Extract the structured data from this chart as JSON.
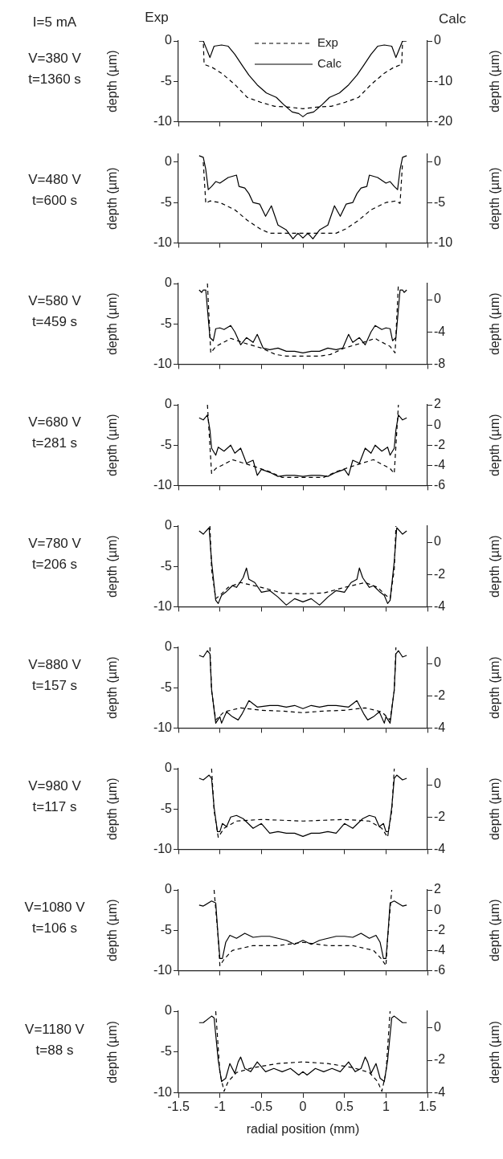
{
  "chart_data": [
    {
      "type": "line",
      "annotations": [
        "I=5 mA",
        "Exp",
        "Calc",
        "V=380 V",
        "t=1360 s"
      ],
      "ylabel": "depth (µm)",
      "y2label": "depth (µm)",
      "xlim": [
        -1.5,
        1.5
      ],
      "xticks": [
        -1.5,
        -1,
        -0.5,
        0,
        0.5,
        1,
        1.5
      ],
      "ylim": [
        -10,
        0
      ],
      "yticks": [
        -10,
        -5,
        0
      ],
      "y2lim": [
        -20,
        0
      ],
      "y2ticks": [
        -20,
        -10,
        0
      ],
      "tick_labels": "y",
      "grid": false,
      "legend": "top",
      "marker": "none",
      "series": [
        {
          "name": "Exp",
          "color": "#000000",
          "line_style": "dashed",
          "axis": "y",
          "x": [
            -1.25,
            -1.2,
            -1.19,
            -1.09,
            -0.98,
            -0.82,
            -0.67,
            -0.51,
            -0.34,
            -0.17,
            0,
            0.17,
            0.34,
            0.51,
            0.67,
            0.82,
            0.98,
            1.09,
            1.19,
            1.2,
            1.25
          ],
          "values": [
            0,
            0,
            -2.9,
            -3.3,
            -4.0,
            -5.4,
            -7.0,
            -7.6,
            -8.1,
            -8.2,
            -8.4,
            -8.2,
            -8.1,
            -7.6,
            -7.0,
            -5.4,
            -4.0,
            -3.3,
            -2.9,
            0,
            0
          ]
        },
        {
          "name": "Calc",
          "color": "#000000",
          "line_style": "solid",
          "axis": "y2",
          "x": [
            -1.25,
            -1.2,
            -1.12,
            -1.07,
            -0.98,
            -0.9,
            -0.82,
            -0.73,
            -0.65,
            -0.55,
            -0.44,
            -0.32,
            -0.22,
            -0.13,
            -0.05,
            0,
            0.05,
            0.13,
            0.22,
            0.32,
            0.44,
            0.55,
            0.65,
            0.73,
            0.82,
            0.9,
            0.98,
            1.07,
            1.12,
            1.2,
            1.25
          ],
          "values": [
            0,
            0,
            -4.1,
            -1.3,
            -1.0,
            -1.3,
            -3.3,
            -6.1,
            -8.5,
            -10.9,
            -12.9,
            -14.0,
            -16.0,
            -17.6,
            -18.0,
            -18.8,
            -18.0,
            -17.6,
            -16.0,
            -14.0,
            -12.9,
            -10.9,
            -8.5,
            -6.1,
            -3.3,
            -1.3,
            -1.0,
            -1.3,
            -4.1,
            0,
            0
          ]
        }
      ]
    },
    {
      "type": "line",
      "annotations": [
        "V=480 V",
        "t=600 s"
      ],
      "ylabel": "depth (µm)",
      "y2label": "depth (µm)",
      "xlim": [
        -1.5,
        1.5
      ],
      "xticks": [
        -1.5,
        -1,
        -0.5,
        0,
        0.5,
        1,
        1.5
      ],
      "ylim": [
        -10,
        1
      ],
      "yticks": [
        -10,
        -5,
        0
      ],
      "y2lim": [
        -10,
        1
      ],
      "y2ticks": [
        -10,
        -5,
        0
      ],
      "tick_labels": "y",
      "grid": false,
      "marker": "none",
      "series": [
        {
          "color": "#000000",
          "line_style": "dashed",
          "axis": "y",
          "x": [
            -1.2,
            -1.17,
            -1.12,
            -1.0,
            -0.82,
            -0.67,
            -0.51,
            -0.4,
            -0.2,
            0,
            0.2,
            0.4,
            0.51,
            0.67,
            0.82,
            1.0,
            1.12,
            1.17,
            1.2
          ],
          "values": [
            0,
            -5.1,
            -4.8,
            -5.0,
            -5.9,
            -7.2,
            -8.3,
            -8.8,
            -8.8,
            -8.8,
            -8.8,
            -8.8,
            -8.3,
            -7.2,
            -5.9,
            -5.0,
            -4.8,
            -5.1,
            0
          ]
        },
        {
          "color": "#000000",
          "line_style": "solid",
          "axis": "y2",
          "x": [
            -1.25,
            -1.2,
            -1.17,
            -1.14,
            -1.1,
            -1.05,
            -1.0,
            -0.9,
            -0.8,
            -0.77,
            -0.7,
            -0.65,
            -0.6,
            -0.52,
            -0.45,
            -0.38,
            -0.3,
            -0.2,
            -0.12,
            -0.06,
            0,
            0.06,
            0.12,
            0.2,
            0.3,
            0.38,
            0.45,
            0.52,
            0.6,
            0.65,
            0.7,
            0.77,
            0.8,
            0.9,
            1.0,
            1.05,
            1.1,
            1.14,
            1.17,
            1.2,
            1.25
          ],
          "values": [
            0.8,
            0.6,
            -0.9,
            -3.4,
            -3.0,
            -2.4,
            -2.6,
            -1.9,
            -1.6,
            -3.0,
            -3.2,
            -3.9,
            -5.0,
            -5.2,
            -6.7,
            -5.4,
            -7.8,
            -8.4,
            -9.5,
            -8.8,
            -9.4,
            -8.8,
            -9.5,
            -8.4,
            -7.8,
            -5.4,
            -6.7,
            -5.2,
            -5.0,
            -3.9,
            -3.2,
            -3.0,
            -1.6,
            -1.9,
            -2.6,
            -2.4,
            -3.0,
            -3.4,
            -0.9,
            0.6,
            0.8
          ]
        }
      ]
    },
    {
      "type": "line",
      "annotations": [
        "V=580 V",
        "t=459 s"
      ],
      "ylabel": "depth (µm)",
      "y2label": "depth (µm)",
      "xlim": [
        -1.5,
        1.5
      ],
      "xticks": [
        -1.5,
        -1,
        -0.5,
        0,
        0.5,
        1,
        1.5
      ],
      "ylim": [
        -10,
        0
      ],
      "yticks": [
        -10,
        -5,
        0
      ],
      "y2lim": [
        -8,
        2
      ],
      "y2ticks": [
        -8,
        -4,
        0
      ],
      "tick_labels": "y",
      "grid": false,
      "marker": "none",
      "series": [
        {
          "color": "#000000",
          "line_style": "dashed",
          "axis": "y",
          "x": [
            -1.15,
            -1.11,
            -1.05,
            -0.9,
            -0.87,
            -0.7,
            -0.5,
            -0.33,
            -0.2,
            0,
            0.2,
            0.33,
            0.5,
            0.7,
            0.87,
            0.9,
            1.05,
            1.11,
            1.15
          ],
          "values": [
            0,
            -8.6,
            -7.8,
            -7.0,
            -6.8,
            -7.4,
            -8.0,
            -8.8,
            -9.0,
            -9.0,
            -9.0,
            -8.8,
            -8.0,
            -7.4,
            -6.8,
            -7.0,
            -7.8,
            -8.6,
            0
          ]
        },
        {
          "color": "#000000",
          "line_style": "solid",
          "axis": "y2",
          "x": [
            -1.25,
            -1.22,
            -1.2,
            -1.17,
            -1.12,
            -1.08,
            -1.05,
            -1.0,
            -0.95,
            -0.87,
            -0.82,
            -0.75,
            -0.68,
            -0.6,
            -0.55,
            -0.48,
            -0.4,
            -0.3,
            -0.2,
            -0.1,
            0,
            0.1,
            0.2,
            0.3,
            0.4,
            0.48,
            0.55,
            0.6,
            0.68,
            0.75,
            0.82,
            0.87,
            0.95,
            1.0,
            1.05,
            1.08,
            1.12,
            1.17,
            1.2,
            1.22,
            1.25
          ],
          "values": [
            1.2,
            0.9,
            1.2,
            1.2,
            -4.7,
            -5.1,
            -3.6,
            -3.5,
            -3.7,
            -3.2,
            -4.0,
            -5.6,
            -4.7,
            -5.3,
            -4.3,
            -6.0,
            -6.2,
            -6.0,
            -6.4,
            -6.4,
            -6.6,
            -6.4,
            -6.4,
            -6.0,
            -6.2,
            -6.0,
            -4.3,
            -5.3,
            -4.7,
            -5.6,
            -4.0,
            -3.2,
            -3.7,
            -3.5,
            -3.6,
            -5.1,
            -4.7,
            1.2,
            1.2,
            0.9,
            1.2
          ]
        }
      ]
    },
    {
      "type": "line",
      "annotations": [
        "V=680 V",
        "t=281 s"
      ],
      "ylabel": "depth (µm)",
      "y2label": "depth (µm)",
      "xlim": [
        -1.5,
        1.5
      ],
      "xticks": [
        -1.5,
        -1,
        -0.5,
        0,
        0.5,
        1,
        1.5
      ],
      "ylim": [
        -10,
        0
      ],
      "yticks": [
        -10,
        -5,
        0
      ],
      "y2lim": [
        -6,
        2
      ],
      "y2ticks": [
        -6,
        -4,
        -2,
        0,
        2
      ],
      "tick_labels": "y",
      "grid": false,
      "marker": "none",
      "series": [
        {
          "color": "#000000",
          "line_style": "dashed",
          "axis": "y",
          "x": [
            -1.15,
            -1.1,
            -1.05,
            -0.9,
            -0.85,
            -0.6,
            -0.4,
            -0.25,
            0,
            0.25,
            0.4,
            0.6,
            0.85,
            0.9,
            1.05,
            1.1,
            1.15
          ],
          "values": [
            0,
            -8.5,
            -7.9,
            -7.1,
            -6.8,
            -7.6,
            -8.3,
            -9.0,
            -9.0,
            -9.0,
            -8.3,
            -7.6,
            -6.8,
            -7.1,
            -7.9,
            -8.5,
            0
          ]
        },
        {
          "color": "#000000",
          "line_style": "solid",
          "axis": "y2",
          "x": [
            -1.25,
            -1.2,
            -1.15,
            -1.12,
            -1.1,
            -1.05,
            -1.02,
            -0.95,
            -0.87,
            -0.82,
            -0.75,
            -0.68,
            -0.6,
            -0.55,
            -0.5,
            -0.4,
            -0.3,
            -0.2,
            -0.1,
            0,
            0.1,
            0.2,
            0.3,
            0.4,
            0.5,
            0.55,
            0.6,
            0.68,
            0.75,
            0.82,
            0.87,
            0.95,
            1.02,
            1.05,
            1.1,
            1.12,
            1.15,
            1.2,
            1.25
          ],
          "values": [
            0.7,
            0.5,
            1.0,
            -0.5,
            -2.3,
            -3.0,
            -2.2,
            -2.6,
            -2.0,
            -2.8,
            -2.3,
            -3.8,
            -3.5,
            -5.0,
            -4.4,
            -4.7,
            -5.1,
            -5.0,
            -5.0,
            -5.1,
            -5.0,
            -5.0,
            -5.1,
            -4.7,
            -4.4,
            -5.0,
            -3.5,
            -3.8,
            -2.3,
            -2.8,
            -2.0,
            -2.6,
            -2.2,
            -3.0,
            -2.3,
            -0.5,
            1.0,
            0.5,
            0.7
          ]
        }
      ]
    },
    {
      "type": "line",
      "annotations": [
        "V=780 V",
        "t=206 s"
      ],
      "ylabel": "depth (µm)",
      "y2label": "depth (µm)",
      "xlim": [
        -1.5,
        1.5
      ],
      "xticks": [
        -1.5,
        -1,
        -0.5,
        0,
        0.5,
        1,
        1.5
      ],
      "ylim": [
        -10,
        0
      ],
      "yticks": [
        -10,
        -5,
        0
      ],
      "y2lim": [
        -4,
        1
      ],
      "y2ticks": [
        -4,
        -2,
        0
      ],
      "tick_labels": "y",
      "grid": false,
      "marker": "none",
      "series": [
        {
          "color": "#000000",
          "line_style": "dashed",
          "axis": "y",
          "x": [
            -1.12,
            -1.1,
            -1.05,
            -1.0,
            -0.9,
            -0.75,
            -0.5,
            -0.25,
            0,
            0.25,
            0.5,
            0.75,
            0.9,
            1.0,
            1.05,
            1.1,
            1.12
          ],
          "values": [
            0,
            -5.4,
            -9.0,
            -8.6,
            -7.6,
            -7.0,
            -7.6,
            -8.3,
            -8.4,
            -8.3,
            -7.6,
            -7.0,
            -7.6,
            -8.6,
            -9.0,
            -5.4,
            0
          ]
        },
        {
          "color": "#000000",
          "line_style": "solid",
          "axis": "y2",
          "x": [
            -1.25,
            -1.2,
            -1.13,
            -1.1,
            -1.05,
            -1.02,
            -0.98,
            -0.93,
            -0.85,
            -0.8,
            -0.72,
            -0.68,
            -0.65,
            -0.58,
            -0.5,
            -0.4,
            -0.3,
            -0.2,
            -0.1,
            0,
            0.1,
            0.2,
            0.3,
            0.4,
            0.5,
            0.58,
            0.65,
            0.68,
            0.72,
            0.8,
            0.85,
            0.93,
            0.98,
            1.02,
            1.05,
            1.1,
            1.13,
            1.2,
            1.25
          ],
          "values": [
            0.7,
            0.5,
            0.9,
            -1.2,
            -3.6,
            -3.8,
            -3.3,
            -3.1,
            -2.7,
            -2.8,
            -2.2,
            -1.6,
            -2.3,
            -2.5,
            -3.1,
            -3.0,
            -3.4,
            -3.9,
            -3.5,
            -3.7,
            -3.5,
            -3.9,
            -3.4,
            -3.0,
            -3.1,
            -2.5,
            -2.3,
            -1.6,
            -2.2,
            -2.8,
            -2.7,
            -3.1,
            -3.3,
            -3.8,
            -3.6,
            -1.2,
            0.9,
            0.5,
            0.7
          ]
        }
      ]
    },
    {
      "type": "line",
      "annotations": [
        "V=880 V",
        "t=157 s"
      ],
      "ylabel": "depth (µm)",
      "y2label": "depth (µm)",
      "xlim": [
        -1.5,
        1.5
      ],
      "xticks": [
        -1.5,
        -1,
        -0.5,
        0,
        0.5,
        1,
        1.5
      ],
      "ylim": [
        -10,
        0
      ],
      "yticks": [
        -10,
        -5,
        0
      ],
      "y2lim": [
        -4,
        1
      ],
      "y2ticks": [
        -4,
        -2,
        0
      ],
      "tick_labels": "y",
      "grid": false,
      "marker": "none",
      "series": [
        {
          "color": "#000000",
          "line_style": "dashed",
          "axis": "y",
          "x": [
            -1.12,
            -1.1,
            -1.05,
            -0.95,
            -0.75,
            -0.5,
            -0.25,
            0,
            0.25,
            0.5,
            0.75,
            0.95,
            1.05,
            1.1,
            1.12
          ],
          "values": [
            0,
            -5.4,
            -9.0,
            -8.0,
            -7.5,
            -7.8,
            -7.9,
            -8.1,
            -7.9,
            -7.8,
            -7.5,
            -8.0,
            -9.0,
            -5.4,
            0
          ]
        },
        {
          "color": "#000000",
          "line_style": "solid",
          "axis": "y2",
          "x": [
            -1.25,
            -1.2,
            -1.15,
            -1.12,
            -1.1,
            -1.05,
            -1.0,
            -0.98,
            -0.92,
            -0.85,
            -0.78,
            -0.73,
            -0.65,
            -0.55,
            -0.4,
            -0.3,
            -0.2,
            -0.1,
            0,
            0.1,
            0.2,
            0.3,
            0.4,
            0.55,
            0.65,
            0.73,
            0.78,
            0.85,
            0.92,
            0.98,
            1.0,
            1.05,
            1.1,
            1.12,
            1.15,
            1.2,
            1.25
          ],
          "values": [
            0.5,
            0.4,
            0.8,
            0.6,
            -1.6,
            -3.7,
            -3.3,
            -3.7,
            -3.0,
            -3.3,
            -3.5,
            -3.1,
            -2.3,
            -2.7,
            -2.6,
            -2.6,
            -2.7,
            -2.6,
            -2.8,
            -2.6,
            -2.7,
            -2.6,
            -2.6,
            -2.7,
            -2.3,
            -3.1,
            -3.5,
            -3.3,
            -3.0,
            -3.7,
            -3.3,
            -3.7,
            -1.6,
            0.6,
            0.8,
            0.4,
            0.5
          ]
        }
      ]
    },
    {
      "type": "line",
      "annotations": [
        "V=980 V",
        "t=117 s"
      ],
      "ylabel": "depth (µm)",
      "y2label": "depth (µm)",
      "xlim": [
        -1.5,
        1.5
      ],
      "xticks": [
        -1.5,
        -1,
        -0.5,
        0,
        0.5,
        1,
        1.5
      ],
      "ylim": [
        -10,
        0
      ],
      "yticks": [
        -10,
        -5,
        0
      ],
      "y2lim": [
        -4,
        1
      ],
      "y2ticks": [
        -4,
        -2,
        0
      ],
      "tick_labels": "y",
      "grid": false,
      "marker": "none",
      "series": [
        {
          "color": "#000000",
          "line_style": "dashed",
          "axis": "y",
          "x": [
            -1.1,
            -1.07,
            -1.02,
            -0.95,
            -0.8,
            -0.5,
            -0.25,
            0,
            0.25,
            0.5,
            0.8,
            0.95,
            1.02,
            1.07,
            1.1
          ],
          "values": [
            0,
            -5.2,
            -8.5,
            -7.4,
            -6.5,
            -6.3,
            -6.4,
            -6.5,
            -6.4,
            -6.3,
            -6.5,
            -7.4,
            -8.5,
            -5.2,
            0
          ]
        },
        {
          "color": "#000000",
          "line_style": "solid",
          "axis": "y2",
          "x": [
            -1.25,
            -1.2,
            -1.13,
            -1.1,
            -1.07,
            -1.03,
            -1.0,
            -0.97,
            -0.92,
            -0.87,
            -0.8,
            -0.72,
            -0.6,
            -0.5,
            -0.4,
            -0.3,
            -0.2,
            -0.1,
            0,
            0.1,
            0.2,
            0.3,
            0.4,
            0.5,
            0.6,
            0.72,
            0.8,
            0.87,
            0.92,
            0.97,
            1.0,
            1.03,
            1.07,
            1.1,
            1.13,
            1.2,
            1.25
          ],
          "values": [
            0.4,
            0.3,
            0.6,
            0.4,
            -1.4,
            -2.9,
            -2.9,
            -2.4,
            -2.6,
            -2.0,
            -1.9,
            -2.1,
            -2.7,
            -2.4,
            -3.0,
            -2.9,
            -3.0,
            -3.0,
            -3.2,
            -3.0,
            -3.0,
            -2.9,
            -3.0,
            -2.4,
            -2.7,
            -2.1,
            -1.9,
            -2.0,
            -2.6,
            -2.4,
            -2.9,
            -2.9,
            -1.4,
            0.4,
            0.6,
            0.3,
            0.4
          ]
        }
      ]
    },
    {
      "type": "line",
      "annotations": [
        "V=1080 V",
        "t=106 s"
      ],
      "ylabel": "depth (µm)",
      "y2label": "depth (µm)",
      "xlim": [
        -1.5,
        1.5
      ],
      "xticks": [
        -1.5,
        -1,
        -0.5,
        0,
        0.5,
        1,
        1.5
      ],
      "ylim": [
        -10,
        0
      ],
      "yticks": [
        -10,
        -5,
        0
      ],
      "y2lim": [
        -6,
        2
      ],
      "y2ticks": [
        -6,
        -4,
        -2,
        0,
        2
      ],
      "tick_labels": "y",
      "grid": false,
      "marker": "none",
      "series": [
        {
          "color": "#000000",
          "line_style": "dashed",
          "axis": "y",
          "x": [
            -1.07,
            -1.02,
            -1.0,
            -0.95,
            -0.85,
            -0.6,
            -0.3,
            0,
            0.3,
            0.6,
            0.85,
            0.95,
            1.0,
            1.02,
            1.07
          ],
          "values": [
            0,
            -6.0,
            -9.4,
            -8.6,
            -7.5,
            -6.9,
            -6.9,
            -6.5,
            -6.9,
            -6.9,
            -7.5,
            -8.6,
            -9.4,
            -6.0,
            0
          ]
        },
        {
          "color": "#000000",
          "line_style": "solid",
          "axis": "y2",
          "x": [
            -1.25,
            -1.2,
            -1.1,
            -1.05,
            -1.02,
            -1.0,
            -0.97,
            -0.93,
            -0.88,
            -0.8,
            -0.7,
            -0.6,
            -0.5,
            -0.4,
            -0.2,
            -0.1,
            0,
            0.1,
            0.2,
            0.4,
            0.5,
            0.6,
            0.7,
            0.8,
            0.88,
            0.93,
            0.97,
            1.0,
            1.02,
            1.05,
            1.1,
            1.2,
            1.25
          ],
          "values": [
            0.5,
            0.4,
            0.9,
            0.7,
            -2.8,
            -4.8,
            -4.8,
            -3.2,
            -2.5,
            -2.8,
            -2.3,
            -2.7,
            -2.6,
            -2.6,
            -3.0,
            -3.4,
            -3.0,
            -3.4,
            -3.0,
            -2.6,
            -2.6,
            -2.7,
            -2.3,
            -2.8,
            -2.5,
            -3.2,
            -4.8,
            -4.8,
            -2.8,
            0.7,
            0.9,
            0.4,
            0.5
          ]
        }
      ]
    },
    {
      "type": "line",
      "annotations": [
        "V=1180 V",
        "t=88 s"
      ],
      "xlabel": "radial position (mm)",
      "ylabel": "depth (µm)",
      "y2label": "depth (µm)",
      "xlim": [
        -1.5,
        1.5
      ],
      "xticks": [
        -1.5,
        -1,
        -0.5,
        0,
        0.5,
        1,
        1.5
      ],
      "ylim": [
        -10,
        0
      ],
      "yticks": [
        -10,
        -5,
        0
      ],
      "y2lim": [
        -4,
        1
      ],
      "y2ticks": [
        -4,
        -2,
        0
      ],
      "grid": false,
      "marker": "none",
      "series": [
        {
          "color": "#000000",
          "line_style": "dashed",
          "axis": "y",
          "x": [
            -1.05,
            -1.0,
            -0.95,
            -0.9,
            -0.8,
            -0.6,
            -0.3,
            0,
            0.3,
            0.6,
            0.8,
            0.9,
            0.95,
            1.0,
            1.05
          ],
          "values": [
            0,
            -7.5,
            -9.8,
            -8.6,
            -7.5,
            -6.9,
            -6.4,
            -6.2,
            -6.4,
            -6.9,
            -7.5,
            -8.6,
            -9.8,
            -7.5,
            0
          ]
        },
        {
          "color": "#000000",
          "line_style": "solid",
          "axis": "y2",
          "x": [
            -1.25,
            -1.2,
            -1.1,
            -1.07,
            -1.02,
            -0.98,
            -0.93,
            -0.88,
            -0.82,
            -0.78,
            -0.75,
            -0.7,
            -0.63,
            -0.55,
            -0.45,
            -0.35,
            -0.25,
            -0.15,
            -0.05,
            0,
            0.05,
            0.15,
            0.25,
            0.35,
            0.45,
            0.55,
            0.63,
            0.7,
            0.75,
            0.78,
            0.82,
            0.88,
            0.93,
            0.98,
            1.02,
            1.07,
            1.1,
            1.2,
            1.25
          ],
          "values": [
            0.3,
            0.3,
            0.7,
            0.6,
            -2.0,
            -3.3,
            -3.1,
            -2.2,
            -2.8,
            -2.1,
            -1.8,
            -2.5,
            -2.7,
            -2.1,
            -2.7,
            -2.5,
            -2.7,
            -2.5,
            -2.9,
            -2.7,
            -2.9,
            -2.5,
            -2.7,
            -2.5,
            -2.7,
            -2.1,
            -2.7,
            -2.5,
            -1.8,
            -2.1,
            -2.8,
            -2.2,
            -3.1,
            -3.3,
            -2.0,
            0.6,
            0.7,
            0.3,
            0.3
          ]
        }
      ]
    }
  ]
}
